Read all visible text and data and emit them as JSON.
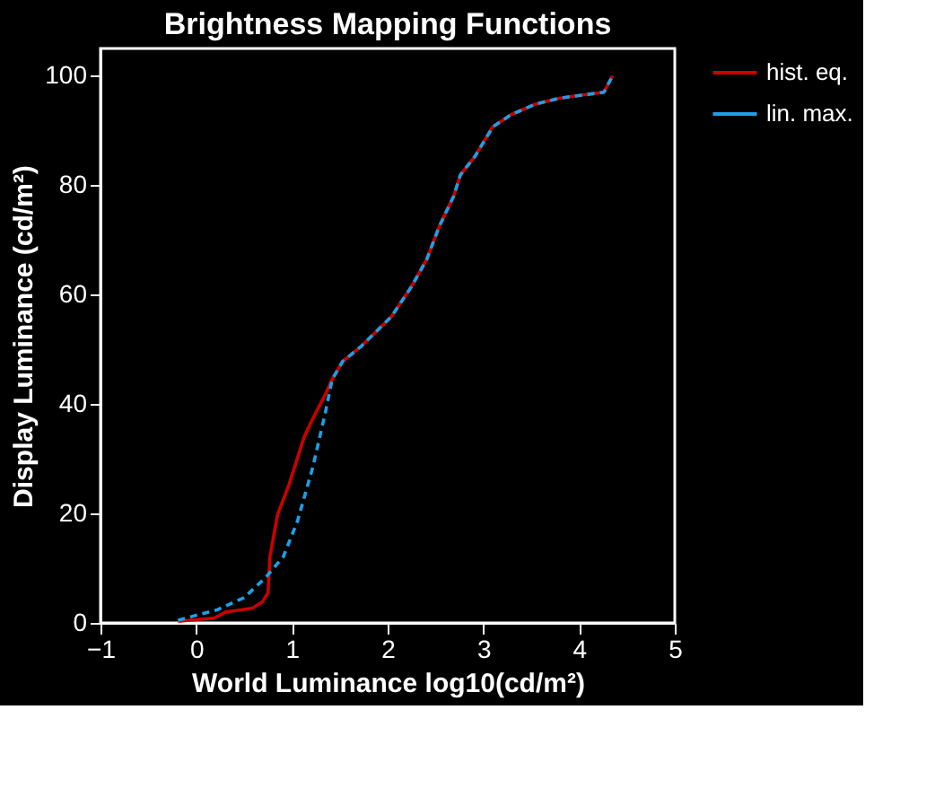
{
  "chart_data": {
    "type": "line",
    "title": "Brightness Mapping Functions",
    "xlabel": "World Luminance log10(cd/m²)",
    "ylabel": "Display Luminance (cd/m²)",
    "xlim": [
      -1,
      5
    ],
    "xticks": [
      -1,
      0,
      1,
      2,
      3,
      4,
      5
    ],
    "ylim": [
      0,
      105
    ],
    "yticks": [
      0,
      20,
      40,
      60,
      80,
      100
    ],
    "grid": false,
    "legend": "right",
    "marker": "none",
    "series": [
      {
        "name": "hist. eq.",
        "color": "#cc0000",
        "line_style": "solid",
        "x": [
          -0.19,
          0.19,
          0.31,
          0.59,
          0.69,
          0.75,
          0.77,
          0.85,
          0.97,
          1.13,
          1.22,
          1.35,
          1.42,
          1.53,
          1.72,
          2.04,
          2.25,
          2.41,
          2.54,
          2.69,
          2.76,
          2.91,
          3.1,
          3.29,
          3.54,
          3.79,
          4.04,
          4.26,
          4.35
        ],
        "values": [
          0.3,
          0.9,
          2.0,
          2.7,
          3.8,
          5.5,
          12.1,
          19.8,
          25.3,
          34.1,
          37.4,
          41.8,
          44.5,
          47.8,
          50.5,
          56.0,
          61.5,
          66.5,
          72.5,
          78.0,
          81.9,
          85.2,
          90.7,
          92.9,
          94.8,
          95.9,
          96.5,
          97.0,
          100
        ]
      },
      {
        "name": "lin. max.",
        "color": "#1e9fe6",
        "line_style": "dashed",
        "x": [
          -0.19,
          0.22,
          0.5,
          0.72,
          0.91,
          1.06,
          1.22,
          1.35,
          1.42,
          1.53,
          1.72,
          2.04,
          2.25,
          2.41,
          2.54,
          2.69,
          2.76,
          2.91,
          3.1,
          3.29,
          3.54,
          3.79,
          4.04,
          4.26,
          4.35
        ],
        "values": [
          0.5,
          2.4,
          4.6,
          8.2,
          12.1,
          18.7,
          28.6,
          38.5,
          44.5,
          47.8,
          50.5,
          56.0,
          61.5,
          66.5,
          72.5,
          78.0,
          81.9,
          85.2,
          90.7,
          92.9,
          94.8,
          95.9,
          96.5,
          97.0,
          100
        ]
      }
    ]
  }
}
